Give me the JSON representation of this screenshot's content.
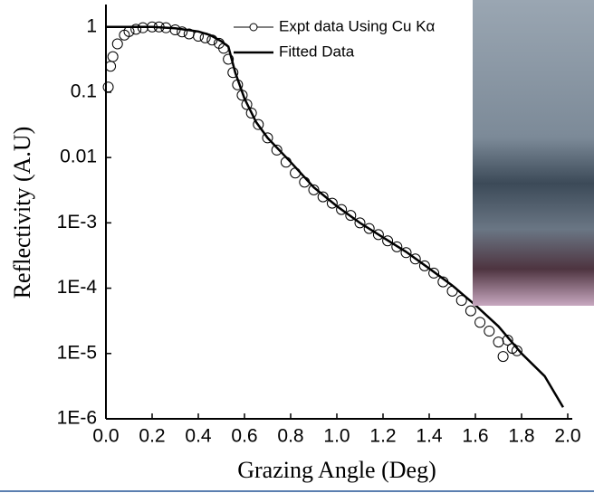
{
  "chart_data": {
    "type": "line",
    "xlabel": "Grazing Angle (Deg)",
    "ylabel": "Reflectivity (A.U)",
    "xlim": [
      0,
      2
    ],
    "ylim": [
      1e-06,
      2.2
    ],
    "log_y": true,
    "xticks": [
      {
        "value": 0,
        "label": "0.0"
      },
      0.2,
      0.4,
      0.6,
      0.8,
      {
        "value": 1,
        "label": "1.0"
      },
      1.2,
      1.4,
      1.6,
      1.8,
      {
        "value": 2,
        "label": "2.0"
      }
    ],
    "yticks": [
      1,
      0.1,
      0.01,
      {
        "value": 0.001,
        "label": "1E-3"
      },
      {
        "value": 0.0001,
        "label": "1E-4"
      },
      {
        "value": 1e-05,
        "label": "1E-5"
      },
      {
        "value": 1e-06,
        "label": "1E-6"
      }
    ],
    "series": [
      {
        "name": "Expt data Using Cu Kα",
        "color": "#000000",
        "marker": "circle",
        "x": [
          0.01,
          0.02,
          0.03,
          0.05,
          0.08,
          0.1,
          0.13,
          0.16,
          0.2,
          0.23,
          0.26,
          0.3,
          0.33,
          0.36,
          0.4,
          0.43,
          0.46,
          0.49,
          0.51,
          0.53,
          0.55,
          0.57,
          0.59,
          0.61,
          0.63,
          0.66,
          0.7,
          0.74,
          0.78,
          0.82,
          0.86,
          0.9,
          0.94,
          0.98,
          1.02,
          1.06,
          1.1,
          1.14,
          1.18,
          1.22,
          1.26,
          1.3,
          1.34,
          1.38,
          1.42,
          1.46,
          1.5,
          1.54,
          1.58,
          1.62,
          1.66,
          1.7,
          1.72,
          1.74,
          1.76,
          1.78
        ],
        "values": [
          0.12,
          0.25,
          0.35,
          0.55,
          0.75,
          0.85,
          0.92,
          0.97,
          1.0,
          1.0,
          0.97,
          0.9,
          0.84,
          0.78,
          0.72,
          0.68,
          0.63,
          0.56,
          0.47,
          0.32,
          0.2,
          0.13,
          0.09,
          0.065,
          0.048,
          0.032,
          0.02,
          0.013,
          0.0085,
          0.0058,
          0.0042,
          0.0032,
          0.0025,
          0.002,
          0.0016,
          0.0013,
          0.001,
          0.00082,
          0.00066,
          0.00053,
          0.00043,
          0.00035,
          0.00028,
          0.00022,
          0.00017,
          0.000125,
          9e-05,
          6.5e-05,
          4.5e-05,
          3e-05,
          2.2e-05,
          1.5e-05,
          9e-06,
          1.6e-05,
          1.2e-05,
          1.1e-05
        ]
      },
      {
        "name": "Fitted Data",
        "color": "#000000",
        "x": [
          0,
          0.1,
          0.2,
          0.3,
          0.4,
          0.45,
          0.5,
          0.53,
          0.56,
          0.6,
          0.65,
          0.7,
          0.8,
          0.9,
          1.0,
          1.1,
          1.2,
          1.3,
          1.4,
          1.5,
          1.6,
          1.7,
          1.8,
          1.9,
          1.98
        ],
        "values": [
          1.0,
          1.0,
          1.0,
          0.95,
          0.85,
          0.75,
          0.6,
          0.5,
          0.2,
          0.08,
          0.035,
          0.02,
          0.0085,
          0.0035,
          0.0018,
          0.001,
          0.0006,
          0.00036,
          0.0002,
          0.00011,
          5.5e-05,
          2.6e-05,
          1e-05,
          4.5e-06,
          1.5e-06
        ]
      }
    ]
  }
}
